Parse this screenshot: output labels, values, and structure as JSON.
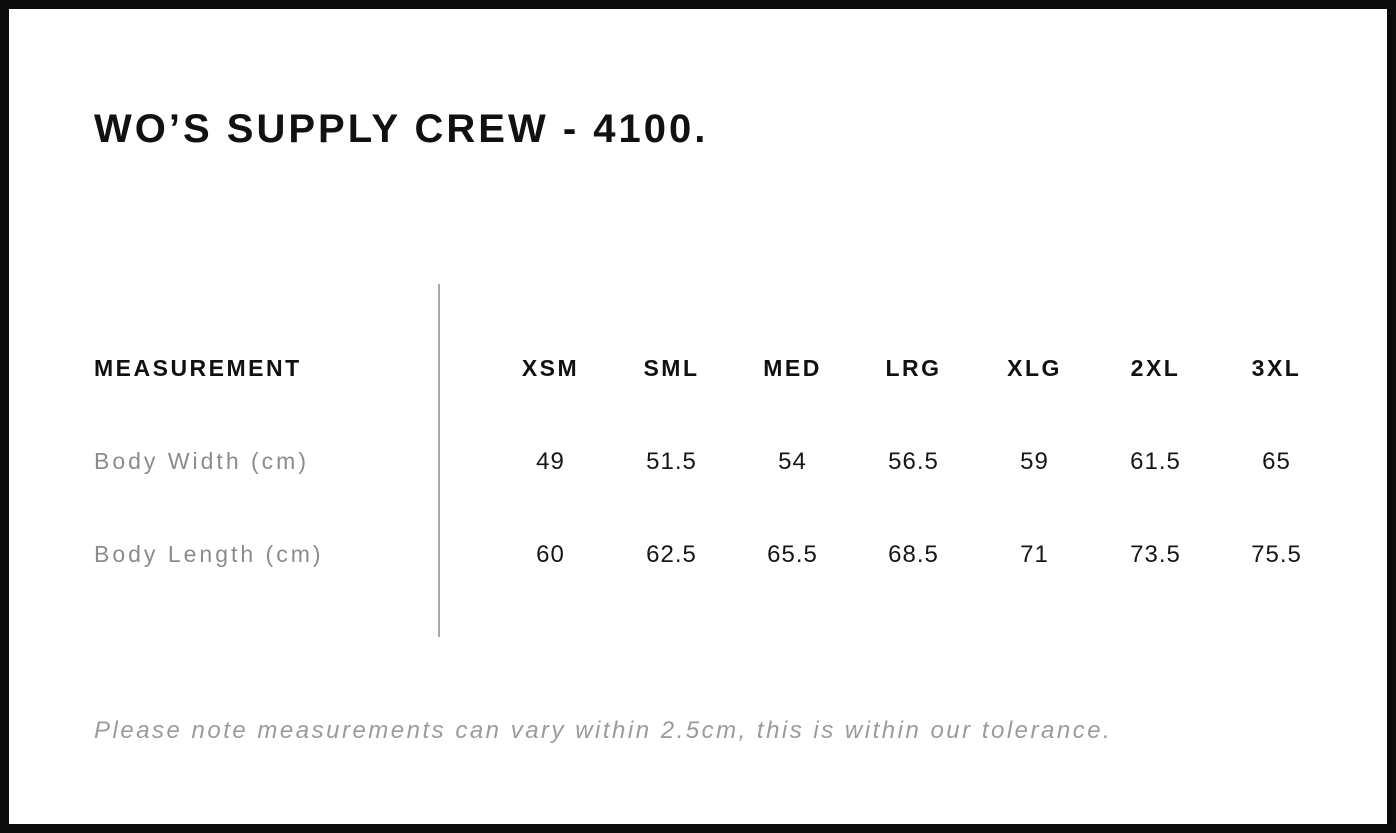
{
  "page": {
    "title": "WO’S SUPPLY CREW - 4100.",
    "note": "Please note measurements can vary within 2.5cm, this is within our tolerance."
  },
  "table": {
    "measurement_header": "MEASUREMENT",
    "size_headers": [
      "XSM",
      "SML",
      "MED",
      "LRG",
      "XLG",
      "2XL",
      "3XL"
    ],
    "rows": [
      {
        "label": "Body Width (cm)",
        "values": [
          "49",
          "51.5",
          "54",
          "56.5",
          "59",
          "61.5",
          "65"
        ]
      },
      {
        "label": "Body Length (cm)",
        "values": [
          "60",
          "62.5",
          "65.5",
          "68.5",
          "71",
          "73.5",
          "75.5"
        ]
      }
    ]
  },
  "colors": {
    "frame_border": "#0b0b0b",
    "heading_text": "#111111",
    "value_text": "#161616",
    "muted_text": "#8c8c8c",
    "note_text": "#9b9b9b",
    "divider": "#a8a8a8",
    "background": "#ffffff"
  }
}
